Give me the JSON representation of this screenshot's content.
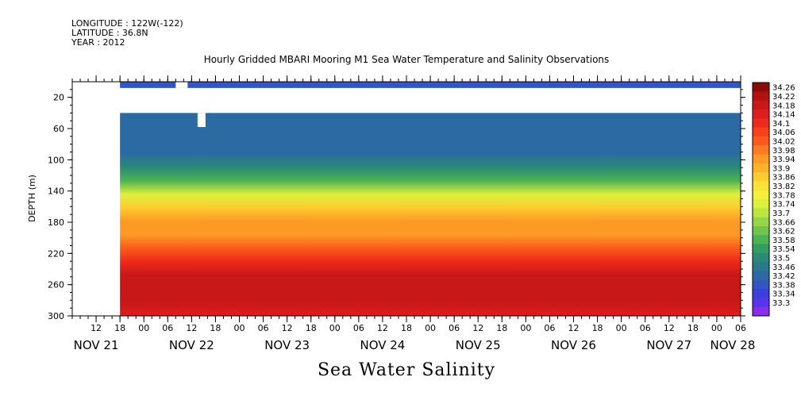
{
  "meta": {
    "longitude": "LONGITUDE : 122W(-122)",
    "latitude": "LATITUDE : 36.8N",
    "year": "YEAR : 2012"
  },
  "bottom_title": "Sea Water Salinity",
  "chart_data": {
    "type": "heatmap",
    "title": "Hourly Gridded MBARI Mooring M1 Sea Water Temperature and Salinity Observations",
    "xlabel": "",
    "ylabel": "DEPTH (m)",
    "ylim": [
      0,
      300
    ],
    "y_inverted": true,
    "yticks": [
      20,
      60,
      100,
      140,
      180,
      220,
      260,
      300
    ],
    "x_hour_labels": [
      "12",
      "18",
      "00",
      "06",
      "12",
      "18",
      "00",
      "06",
      "12",
      "18",
      "00",
      "06",
      "12",
      "18",
      "00",
      "06",
      "12",
      "18",
      "00",
      "06",
      "12",
      "18",
      "00",
      "06",
      "12",
      "18",
      "00",
      "06"
    ],
    "x_day_labels": [
      "NOV 21",
      "NOV 22",
      "NOV 23",
      "NOV 24",
      "NOV 25",
      "NOV 26",
      "NOV 27",
      "NOV 28"
    ],
    "x_range_hours": [
      6,
      174
    ],
    "data_start_hours": 18,
    "day_label_hours": [
      12,
      36,
      60,
      84,
      108,
      132,
      156,
      172
    ],
    "colorbar_labels": [
      "34.26",
      "34.22",
      "34.18",
      "34.14",
      "34.1",
      "34.06",
      "34.02",
      "33.98",
      "33.94",
      "33.9",
      "33.86",
      "33.82",
      "33.78",
      "33.74",
      "33.7",
      "33.66",
      "33.62",
      "33.58",
      "33.54",
      "33.5",
      "33.46",
      "33.42",
      "33.38",
      "33.34",
      "33.3"
    ],
    "colorbar_colors": [
      "#8c0a0a",
      "#b01212",
      "#c81818",
      "#dc1e1e",
      "#ee2a1a",
      "#f8401a",
      "#fb5a1c",
      "#fd7a20",
      "#fd9a26",
      "#fdb22a",
      "#fdcc30",
      "#fbe236",
      "#f2f03a",
      "#dcf03c",
      "#bce640",
      "#98d646",
      "#72c44c",
      "#4cb254",
      "#349c62",
      "#2a8a76",
      "#2a7a8c",
      "#2c6aa4",
      "#3456c2",
      "#3c40da",
      "#5834ec",
      "#8a2ee8"
    ],
    "gaps_hours": [
      [
        18.5,
        19
      ],
      [
        32,
        35
      ],
      [
        37.5,
        39.5
      ]
    ],
    "depth_profile": [
      {
        "depth": 8,
        "value": 33.44
      },
      {
        "depth": 40,
        "value": 33.44
      },
      {
        "depth": 60,
        "value": 33.47
      },
      {
        "depth": 80,
        "value": 33.52
      },
      {
        "depth": 100,
        "value": 33.62
      },
      {
        "depth": 120,
        "value": 33.76
      },
      {
        "depth": 140,
        "value": 33.88
      },
      {
        "depth": 160,
        "value": 33.95
      },
      {
        "depth": 180,
        "value": 33.97
      },
      {
        "depth": 200,
        "value": 34.04
      },
      {
        "depth": 220,
        "value": 34.12
      },
      {
        "depth": 240,
        "value": 34.17
      },
      {
        "depth": 260,
        "value": 34.2
      },
      {
        "depth": 280,
        "value": 34.18
      },
      {
        "depth": 300,
        "value": 34.16
      }
    ]
  }
}
